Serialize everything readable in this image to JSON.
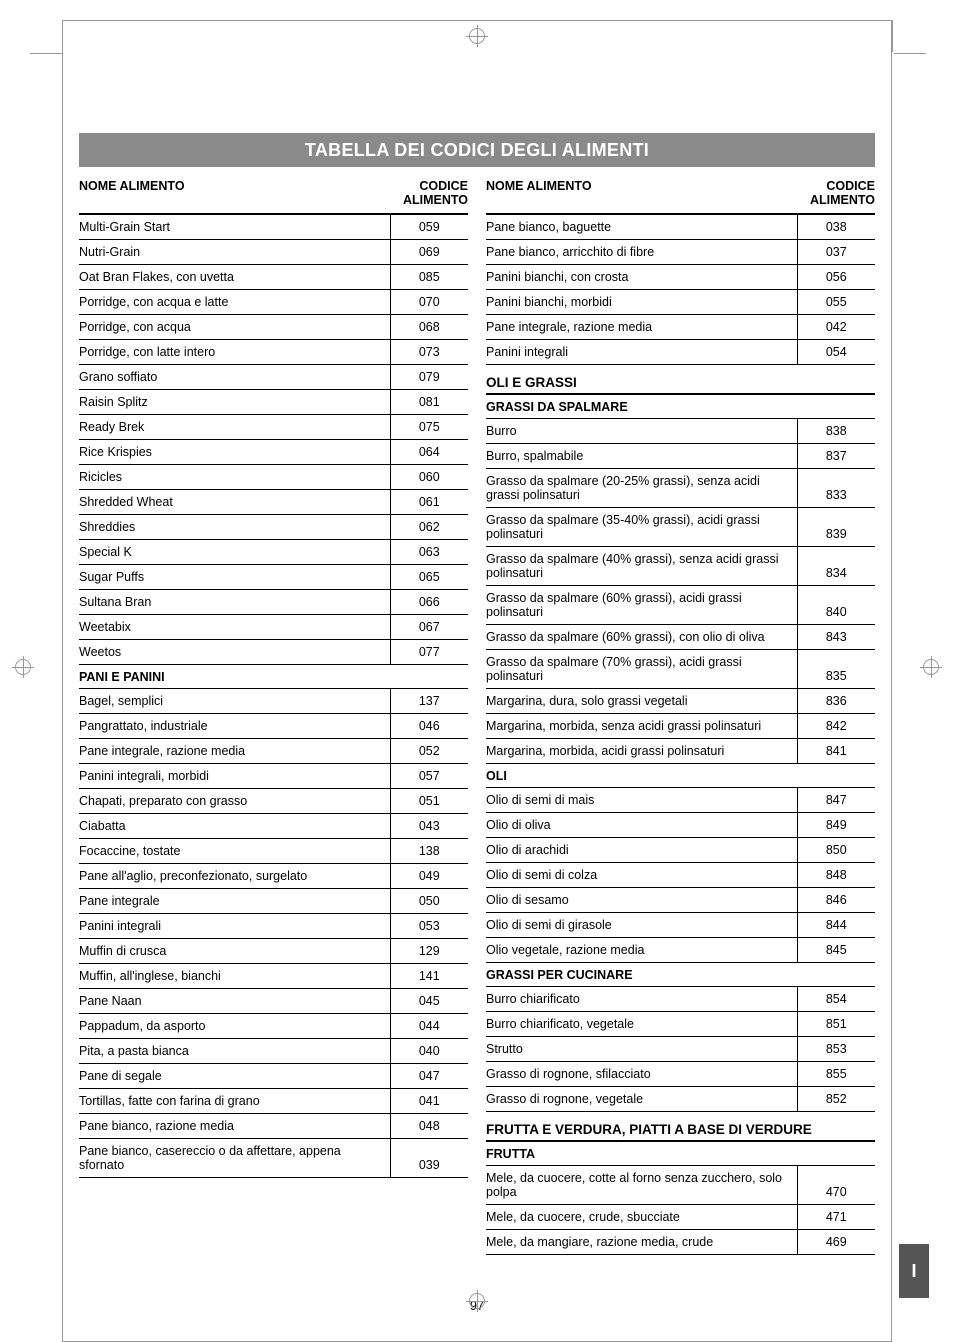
{
  "title": "TABELLA DEI CODICI DEGLI ALIMENTI",
  "page_number": "97",
  "side_tab": "I",
  "headers": {
    "name": "NOME ALIMENTO",
    "code_line1": "CODICE",
    "code_line2": "ALIMENTO"
  },
  "left_rows": [
    {
      "t": "item",
      "name": "Multi-Grain Start",
      "code": "059"
    },
    {
      "t": "item",
      "name": "Nutri-Grain",
      "code": "069"
    },
    {
      "t": "item",
      "name": "Oat Bran Flakes, con uvetta",
      "code": "085"
    },
    {
      "t": "item",
      "name": "Porridge, con acqua e latte",
      "code": "070"
    },
    {
      "t": "item",
      "name": "Porridge, con acqua",
      "code": "068"
    },
    {
      "t": "item",
      "name": "Porridge, con latte intero",
      "code": "073"
    },
    {
      "t": "item",
      "name": "Grano soffiato",
      "code": "079"
    },
    {
      "t": "item",
      "name": "Raisin Splitz",
      "code": "081"
    },
    {
      "t": "item",
      "name": "Ready Brek",
      "code": "075"
    },
    {
      "t": "item",
      "name": "Rice Krispies",
      "code": "064"
    },
    {
      "t": "item",
      "name": "Ricicles",
      "code": "060"
    },
    {
      "t": "item",
      "name": "Shredded Wheat",
      "code": "061"
    },
    {
      "t": "item",
      "name": "Shreddies",
      "code": "062"
    },
    {
      "t": "item",
      "name": "Special K",
      "code": "063"
    },
    {
      "t": "item",
      "name": "Sugar Puffs",
      "code": "065"
    },
    {
      "t": "item",
      "name": "Sultana Bran",
      "code": "066"
    },
    {
      "t": "item",
      "name": "Weetabix",
      "code": "067"
    },
    {
      "t": "item",
      "name": "Weetos",
      "code": "077"
    },
    {
      "t": "subsection",
      "name": "PANI E PANINI"
    },
    {
      "t": "item",
      "name": "Bagel, semplici",
      "code": "137"
    },
    {
      "t": "item",
      "name": "Pangrattato, industriale",
      "code": "046"
    },
    {
      "t": "item",
      "name": "Pane integrale, razione media",
      "code": "052"
    },
    {
      "t": "item",
      "name": "Panini integrali, morbidi",
      "code": "057"
    },
    {
      "t": "item",
      "name": "Chapati, preparato con grasso",
      "code": "051"
    },
    {
      "t": "item",
      "name": "Ciabatta",
      "code": "043"
    },
    {
      "t": "item",
      "name": "Focaccine, tostate",
      "code": "138"
    },
    {
      "t": "item",
      "name": "Pane all'aglio, preconfezionato, surgelato",
      "code": "049"
    },
    {
      "t": "item",
      "name": "Pane integrale",
      "code": "050"
    },
    {
      "t": "item",
      "name": "Panini integrali",
      "code": "053"
    },
    {
      "t": "item",
      "name": "Muffin di crusca",
      "code": "129"
    },
    {
      "t": "item",
      "name": "Muffin, all'inglese, bianchi",
      "code": "141"
    },
    {
      "t": "item",
      "name": "Pane Naan",
      "code": "045"
    },
    {
      "t": "item",
      "name": "Pappadum, da asporto",
      "code": "044"
    },
    {
      "t": "item",
      "name": "Pita, a pasta bianca",
      "code": "040"
    },
    {
      "t": "item",
      "name": "Pane di segale",
      "code": "047"
    },
    {
      "t": "item",
      "name": "Tortillas, fatte con farina di grano",
      "code": "041"
    },
    {
      "t": "item",
      "name": "Pane bianco, razione media",
      "code": "048"
    },
    {
      "t": "item",
      "name": "Pane bianco, casereccio o da affettare, appena sfornato",
      "code": "039"
    }
  ],
  "right_rows": [
    {
      "t": "item",
      "name": "Pane bianco, baguette",
      "code": "038"
    },
    {
      "t": "item",
      "name": "Pane bianco, arricchito di fibre",
      "code": "037"
    },
    {
      "t": "item",
      "name": "Panini bianchi, con crosta",
      "code": "056"
    },
    {
      "t": "item",
      "name": "Panini bianchi, morbidi",
      "code": "055"
    },
    {
      "t": "item",
      "name": "Pane integrale, razione media",
      "code": "042"
    },
    {
      "t": "item",
      "name": "Panini integrali",
      "code": "054"
    },
    {
      "t": "section",
      "name": "OLI E GRASSI"
    },
    {
      "t": "subsection",
      "name": "GRASSI DA SPALMARE"
    },
    {
      "t": "item",
      "name": "Burro",
      "code": "838"
    },
    {
      "t": "item",
      "name": "Burro, spalmabile",
      "code": "837"
    },
    {
      "t": "item",
      "name": "Grasso da spalmare (20-25% grassi), senza acidi grassi polinsaturi",
      "code": "833"
    },
    {
      "t": "item",
      "name": "Grasso da spalmare (35-40% grassi), acidi grassi polinsaturi",
      "code": "839"
    },
    {
      "t": "item",
      "name": "Grasso da spalmare (40% grassi), senza acidi grassi polinsaturi",
      "code": "834"
    },
    {
      "t": "item",
      "name": "Grasso da spalmare (60% grassi), acidi grassi polinsaturi",
      "code": "840"
    },
    {
      "t": "item",
      "name": "Grasso da spalmare (60% grassi), con olio di oliva",
      "code": "843"
    },
    {
      "t": "item",
      "name": "Grasso da spalmare (70% grassi), acidi grassi polinsaturi",
      "code": "835"
    },
    {
      "t": "item",
      "name": "Margarina, dura, solo grassi vegetali",
      "code": "836"
    },
    {
      "t": "item",
      "name": "Margarina, morbida, senza acidi grassi polinsaturi",
      "code": "842"
    },
    {
      "t": "item",
      "name": "Margarina, morbida, acidi grassi polinsaturi",
      "code": "841"
    },
    {
      "t": "subsection",
      "name": "OLI"
    },
    {
      "t": "item",
      "name": "Olio di semi di mais",
      "code": "847"
    },
    {
      "t": "item",
      "name": "Olio di oliva",
      "code": "849"
    },
    {
      "t": "item",
      "name": "Olio di arachidi",
      "code": "850"
    },
    {
      "t": "item",
      "name": "Olio di semi di colza",
      "code": "848"
    },
    {
      "t": "item",
      "name": "Olio di sesamo",
      "code": "846"
    },
    {
      "t": "item",
      "name": "Olio di semi di girasole",
      "code": "844"
    },
    {
      "t": "item",
      "name": "Olio vegetale, razione media",
      "code": "845"
    },
    {
      "t": "subsection",
      "name": "GRASSI PER CUCINARE"
    },
    {
      "t": "item",
      "name": "Burro chiarificato",
      "code": "854"
    },
    {
      "t": "item",
      "name": "Burro chiarificato, vegetale",
      "code": "851"
    },
    {
      "t": "item",
      "name": "Strutto",
      "code": "853"
    },
    {
      "t": "item",
      "name": "Grasso di rognone, sfilacciato",
      "code": "855"
    },
    {
      "t": "item",
      "name": "Grasso di rognone, vegetale",
      "code": "852"
    },
    {
      "t": "section",
      "name": "FRUTTA E VERDURA, PIATTI A BASE DI VERDURE"
    },
    {
      "t": "subsection",
      "name": "FRUTTA"
    },
    {
      "t": "item",
      "name": "Mele, da cuocere, cotte al forno senza zucchero, solo polpa",
      "code": "470"
    },
    {
      "t": "item",
      "name": "Mele, da cuocere, crude, sbucciate",
      "code": "471"
    },
    {
      "t": "item",
      "name": "Mele, da mangiare, razione media, crude",
      "code": "469"
    }
  ]
}
